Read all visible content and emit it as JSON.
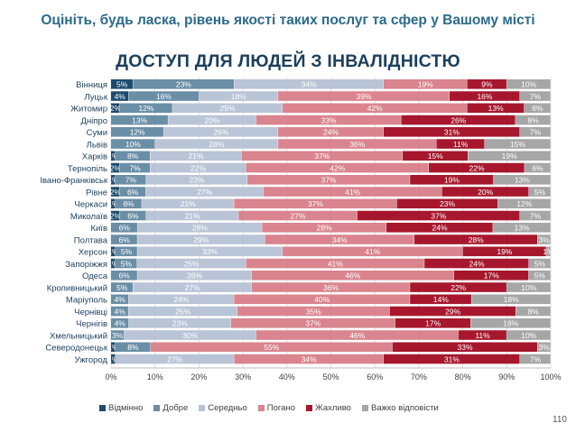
{
  "header": "Оцініть, будь ласка, рівень якості таких послуг та сфер у Вашому місті",
  "page_number": "110",
  "chart_data": {
    "type": "bar",
    "orientation": "horizontal",
    "stacked": true,
    "title": "ДОСТУП ДЛЯ ЛЮДЕЙ З ІНВАЛІДНІСТЮ",
    "xlim": [
      0,
      100
    ],
    "x_ticks": [
      "0%",
      "10%",
      "20%",
      "30%",
      "40%",
      "50%",
      "60%",
      "70%",
      "80%",
      "90%",
      "100%"
    ],
    "legend_position": "bottom",
    "categories": [
      "Вінниця",
      "Луцьк",
      "Житомир",
      "Дніпро",
      "Суми",
      "Львів",
      "Харків",
      "Тернопіль",
      "Івано-Франківськ",
      "Рівне",
      "Черкаси",
      "Миколаїв",
      "Київ",
      "Полтава",
      "Херсон",
      "Запоріжжя",
      "Одеса",
      "Кропивницький",
      "Маріуполь",
      "Чернівці",
      "Чернігів",
      "Хмельницький",
      "Северодонецьк",
      "Ужгород"
    ],
    "series": [
      {
        "name": "Відмінно",
        "color": "#1d4a6e",
        "values": [
          5,
          4,
          2,
          0,
          0,
          0,
          1,
          2,
          1,
          2,
          1,
          2,
          0,
          0,
          1,
          1,
          0,
          0,
          0,
          0,
          0,
          0,
          1,
          1
        ]
      },
      {
        "name": "Добре",
        "color": "#6a8ea6",
        "values": [
          23,
          16,
          12,
          13,
          12,
          10,
          8,
          7,
          7,
          6,
          6,
          6,
          6,
          6,
          5,
          5,
          6,
          5,
          4,
          4,
          4,
          3,
          8,
          0
        ]
      },
      {
        "name": "Середньо",
        "color": "#b9c4d6",
        "values": [
          34,
          18,
          25,
          20,
          26,
          28,
          21,
          22,
          23,
          27,
          21,
          21,
          28,
          29,
          33,
          25,
          26,
          27,
          24,
          25,
          23,
          30,
          0,
          27
        ]
      },
      {
        "name": "Погано",
        "color": "#d9848e",
        "values": [
          19,
          39,
          42,
          33,
          24,
          36,
          37,
          42,
          37,
          41,
          37,
          27,
          28,
          34,
          41,
          41,
          46,
          36,
          40,
          35,
          37,
          46,
          55,
          34
        ]
      },
      {
        "name": "Жахливо",
        "color": "#a6172d",
        "values": [
          9,
          16,
          13,
          26,
          31,
          11,
          15,
          22,
          19,
          20,
          23,
          37,
          24,
          28,
          19,
          24,
          17,
          22,
          14,
          29,
          17,
          11,
          33,
          31
        ]
      },
      {
        "name": "Важко відповісти",
        "color": "#a6a6a6",
        "values": [
          10,
          7,
          6,
          8,
          7,
          15,
          19,
          6,
          13,
          5,
          12,
          7,
          13,
          3,
          1,
          5,
          5,
          10,
          18,
          8,
          18,
          10,
          3,
          7
        ]
      }
    ]
  }
}
